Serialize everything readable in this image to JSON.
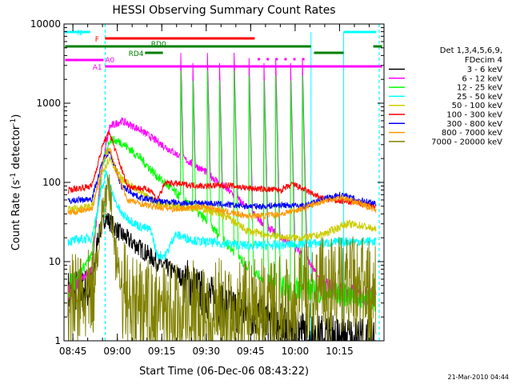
{
  "chart_data": {
    "type": "line",
    "title": "HESSI Observing Summary Count Rates",
    "xlabel": "Start Time (06-Dec-06 08:43:22)",
    "ylabel_main": "Count Rate (s",
    "ylabel_sup1": "-1",
    "ylabel_mid": " detector",
    "ylabel_sup2": "-1",
    "ylabel_end": ")",
    "xlim": [
      -1.37,
      106.63
    ],
    "ylim": [
      1,
      10000
    ],
    "yscale": "log",
    "x_ticks": [
      {
        "v": 1.63,
        "label": "08:45"
      },
      {
        "v": 16.63,
        "label": "09:00"
      },
      {
        "v": 31.63,
        "label": "09:15"
      },
      {
        "v": 46.63,
        "label": "09:30"
      },
      {
        "v": 61.63,
        "label": "09:45"
      },
      {
        "v": 76.63,
        "label": "10:00"
      },
      {
        "v": 91.63,
        "label": "10:15"
      }
    ],
    "y_ticks": [
      {
        "v": 1,
        "label": "1"
      },
      {
        "v": 10,
        "label": "10"
      },
      {
        "v": 100,
        "label": "100"
      },
      {
        "v": 1000,
        "label": "1000"
      },
      {
        "v": 10000,
        "label": "10000"
      }
    ],
    "legend_header": [
      "Det 1,3,4,5,6,9,",
      "FDecim 4"
    ],
    "legend_placement": "right",
    "series": [
      {
        "name": "3 - 6 keV",
        "color": "#000000",
        "values": [
          [
            0,
            4
          ],
          [
            8,
            4.5
          ],
          [
            10,
            20
          ],
          [
            12.5,
            36
          ],
          [
            14,
            32
          ],
          [
            18,
            22
          ],
          [
            24,
            15
          ],
          [
            30,
            10
          ],
          [
            38,
            6.5
          ],
          [
            46,
            3.8
          ],
          [
            54,
            2.6
          ],
          [
            62,
            2.2
          ],
          [
            70,
            1.6
          ],
          [
            78,
            1.3
          ],
          [
            86,
            1.1
          ],
          [
            94,
            1.05
          ],
          [
            104,
            1.0
          ]
        ]
      },
      {
        "name": "6 - 12 keV",
        "color": "#ff00ff",
        "values": [
          [
            0,
            4
          ],
          [
            8,
            8
          ],
          [
            11,
            120
          ],
          [
            14,
            500
          ],
          [
            18,
            600
          ],
          [
            24,
            470
          ],
          [
            30,
            330
          ],
          [
            38,
            210
          ],
          [
            46,
            140
          ],
          [
            54,
            80
          ],
          [
            60,
            50
          ],
          [
            66,
            30
          ],
          [
            72,
            20
          ],
          [
            80,
            12
          ],
          [
            86,
            5
          ],
          [
            94,
            4
          ],
          [
            104,
            3.5
          ]
        ]
      },
      {
        "name": "12 - 25 keV",
        "color": "#00ff00",
        "values": [
          [
            0,
            4.5
          ],
          [
            8,
            12
          ],
          [
            12,
            180
          ],
          [
            14,
            350
          ],
          [
            18,
            320
          ],
          [
            24,
            210
          ],
          [
            30,
            120
          ],
          [
            38,
            65
          ],
          [
            46,
            35
          ],
          [
            54,
            16
          ],
          [
            60,
            9
          ],
          [
            66,
            6
          ],
          [
            74,
            4.5
          ],
          [
            80,
            4.5
          ],
          [
            86,
            4
          ],
          [
            94,
            3.8
          ],
          [
            104,
            3.3
          ]
        ]
      },
      {
        "name": "25 - 50 keV",
        "color": "#00ffff",
        "values": [
          [
            0,
            18
          ],
          [
            8,
            20
          ],
          [
            11,
            70
          ],
          [
            13,
            140
          ],
          [
            15,
            70
          ],
          [
            18,
            40
          ],
          [
            24,
            28
          ],
          [
            28,
            25
          ],
          [
            30,
            12
          ],
          [
            33,
            12
          ],
          [
            36,
            22
          ],
          [
            44,
            18
          ],
          [
            52,
            17
          ],
          [
            60,
            16
          ],
          [
            70,
            16
          ],
          [
            80,
            17
          ],
          [
            86,
            17
          ],
          [
            94,
            18
          ],
          [
            104,
            18
          ]
        ]
      },
      {
        "name": "50 - 100 keV",
        "color": "#cccc00",
        "values": [
          [
            0,
            45
          ],
          [
            8,
            50
          ],
          [
            12,
            150
          ],
          [
            14,
            200
          ],
          [
            18,
            110
          ],
          [
            24,
            75
          ],
          [
            30,
            55
          ],
          [
            38,
            50
          ],
          [
            46,
            46
          ],
          [
            54,
            36
          ],
          [
            60,
            25
          ],
          [
            66,
            22
          ],
          [
            74,
            20
          ],
          [
            80,
            20
          ],
          [
            86,
            22
          ],
          [
            94,
            30
          ],
          [
            100,
            28
          ],
          [
            104,
            25
          ]
        ]
      },
      {
        "name": "100 - 300 keV",
        "color": "#ff0000",
        "values": [
          [
            0,
            80
          ],
          [
            8,
            90
          ],
          [
            12,
            320
          ],
          [
            14,
            430
          ],
          [
            16,
            250
          ],
          [
            20,
            90
          ],
          [
            28,
            80
          ],
          [
            30,
            60
          ],
          [
            33,
            100
          ],
          [
            38,
            95
          ],
          [
            46,
            90
          ],
          [
            54,
            92
          ],
          [
            60,
            85
          ],
          [
            66,
            82
          ],
          [
            72,
            80
          ],
          [
            76,
            95
          ],
          [
            80,
            80
          ],
          [
            86,
            62
          ],
          [
            92,
            58
          ],
          [
            98,
            55
          ],
          [
            104,
            50
          ]
        ]
      },
      {
        "name": "300 - 800 keV",
        "color": "#0000ff",
        "values": [
          [
            0,
            58
          ],
          [
            8,
            62
          ],
          [
            12,
            200
          ],
          [
            14,
            250
          ],
          [
            18,
            90
          ],
          [
            24,
            65
          ],
          [
            30,
            58
          ],
          [
            38,
            55
          ],
          [
            46,
            55
          ],
          [
            54,
            52
          ],
          [
            60,
            50
          ],
          [
            66,
            50
          ],
          [
            72,
            52
          ],
          [
            80,
            50
          ],
          [
            86,
            62
          ],
          [
            92,
            70
          ],
          [
            98,
            60
          ],
          [
            104,
            55
          ]
        ]
      },
      {
        "name": "800 - 7000 keV",
        "color": "#ff9900",
        "values": [
          [
            0,
            42
          ],
          [
            8,
            45
          ],
          [
            12,
            180
          ],
          [
            14,
            280
          ],
          [
            16,
            150
          ],
          [
            20,
            60
          ],
          [
            28,
            50
          ],
          [
            36,
            46
          ],
          [
            46,
            50
          ],
          [
            54,
            42
          ],
          [
            60,
            38
          ],
          [
            66,
            38
          ],
          [
            72,
            40
          ],
          [
            80,
            48
          ],
          [
            86,
            58
          ],
          [
            92,
            65
          ],
          [
            98,
            55
          ],
          [
            104,
            45
          ]
        ]
      },
      {
        "name": "7000 - 20000 keV",
        "color": "#808000",
        "values": [
          [
            0,
            3
          ],
          [
            8,
            3.5
          ],
          [
            12,
            55
          ],
          [
            14,
            80
          ],
          [
            16,
            15
          ],
          [
            20,
            3
          ],
          [
            28,
            2.5
          ],
          [
            36,
            2.4
          ],
          [
            46,
            2.6
          ],
          [
            54,
            2.8
          ],
          [
            62,
            2.8
          ],
          [
            70,
            3
          ],
          [
            76,
            3.5
          ],
          [
            80,
            4.5
          ],
          [
            86,
            5
          ],
          [
            92,
            5.5
          ],
          [
            98,
            5
          ],
          [
            104,
            4
          ]
        ]
      }
    ],
    "state_bars": [
      {
        "name": "N",
        "color": "#00ffff",
        "segments": [
          [
            -1,
            7.5
          ],
          [
            93,
            104
          ]
        ]
      },
      {
        "name": "F",
        "color": "#ff0000",
        "segments": [
          [
            12.5,
            63
          ]
        ]
      },
      {
        "name": "RD0",
        "color": "#008000",
        "segments": [
          [
            -1,
            82
          ],
          [
            103,
            106
          ]
        ]
      },
      {
        "name": "RD4",
        "color": "#008000",
        "segments": [
          [
            26,
            32
          ],
          [
            83,
            93
          ]
        ]
      },
      {
        "name": "A0",
        "color": "#ff00ff",
        "segments": [
          [
            -1,
            12
          ]
        ]
      },
      {
        "name": "A1",
        "color": "#ff00ff",
        "segments": [
          [
            12.5,
            106
          ]
        ]
      }
    ],
    "spike_times": [
      38,
      42,
      47,
      51,
      56,
      61,
      66,
      70,
      75,
      79
    ],
    "dashed_lines": [
      {
        "x": 12.5,
        "color": "#00ffff"
      },
      {
        "x": 105,
        "color": "#00ffff"
      }
    ],
    "solid_markers": [
      {
        "x": 93,
        "color": "#00ffff"
      },
      {
        "x": 82,
        "color": "#00ffff"
      }
    ]
  },
  "footer": {
    "timestamp": "21-Mar-2010 04:44"
  }
}
